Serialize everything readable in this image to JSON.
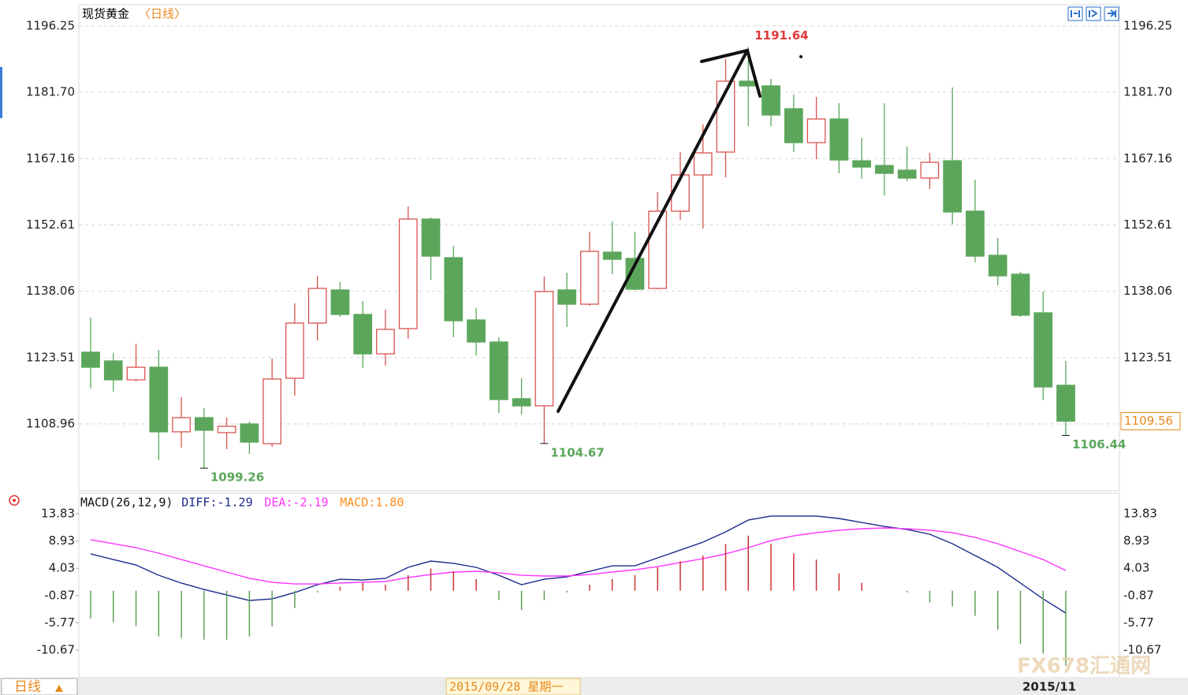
{
  "title": "现货黄金",
  "period": "〈日线〉",
  "chart_data": [
    {
      "type": "candlestick",
      "color_up": "#d9534f",
      "color_down": "#5ba65b",
      "grid": true,
      "ylim": [
        1094.44,
        1200.57
      ],
      "yticks": [
        1108.96,
        1123.51,
        1138.06,
        1152.61,
        1167.16,
        {
          "value": 1181.7,
          "label": "1181.70"
        },
        1196.25
      ],
      "open": [
        1124.69,
        1122.78,
        1118.64,
        1121.4,
        1107.23,
        1110.34,
        1107.05,
        1108.96,
        1104.63,
        1118.98,
        1131.08,
        1138.34,
        1132.98,
        1124.34,
        1129.87,
        1153.9,
        1145.43,
        1131.77,
        1126.93,
        1114.49,
        1112.93,
        1138.34,
        1135.23,
        1146.64,
        1145.26,
        1138.69,
        1155.63,
        1163.58,
        1168.59,
        1184.15,
        1183.11,
        1178.1,
        1170.67,
        1175.85,
        1166.69,
        1165.65,
        1164.62,
        1162.89,
        1166.69,
        1155.63,
        1145.95,
        1141.8,
        1133.33,
        1117.43
      ],
      "high": [
        1132.29,
        1124.51,
        1126.59,
        1125.2,
        1114.83,
        1112.41,
        1110.34,
        1109.47,
        1123.3,
        1135.4,
        1141.45,
        1140.07,
        1135.92,
        1134.02,
        1156.67,
        1154.25,
        1148.02,
        1134.37,
        1127.97,
        1118.98,
        1141.28,
        1142.15,
        1151.13,
        1153.38,
        1151.13,
        1159.78,
        1168.59,
        1174.64,
        1188.99,
        1191.64,
        1184.67,
        1181.21,
        1180.69,
        1179.31,
        1171.7,
        1179.31,
        1169.8,
        1168.42,
        1182.77,
        1162.54,
        1149.75,
        1142.32,
        1138.0,
        1122.78
      ],
      "low": [
        1116.73,
        1116.04,
        1118.29,
        1101.0,
        1103.77,
        1099.26,
        1103.42,
        1102.39,
        1103.94,
        1115.18,
        1127.28,
        1132.46,
        1121.23,
        1121.75,
        1127.62,
        1140.59,
        1127.97,
        1123.99,
        1111.38,
        1111.03,
        1104.67,
        1130.22,
        1134.88,
        1141.8,
        1138.34,
        1138.51,
        1153.73,
        1151.82,
        1163.06,
        1174.3,
        1174.3,
        1168.59,
        1167.04,
        1163.93,
        1162.72,
        1159.09,
        1162.2,
        1160.47,
        1152.69,
        1144.39,
        1139.38,
        1132.46,
        1114.14,
        1106.44
      ],
      "close": [
        1121.4,
        1118.64,
        1121.4,
        1107.23,
        1110.34,
        1107.57,
        1108.44,
        1104.98,
        1118.81,
        1131.08,
        1138.69,
        1132.98,
        1124.34,
        1129.7,
        1153.9,
        1145.77,
        1131.6,
        1126.93,
        1114.31,
        1112.93,
        1138.0,
        1135.23,
        1146.81,
        1145.08,
        1138.51,
        1155.63,
        1163.58,
        1168.42,
        1184.15,
        1183.11,
        1176.72,
        1170.67,
        1175.85,
        1166.86,
        1165.31,
        1163.93,
        1162.89,
        1166.35,
        1155.46,
        1145.77,
        1141.45,
        1132.81,
        1117.08,
        1109.56
      ]
    },
    {
      "type": "macd",
      "title": "MACD(26,12,9)",
      "ylim": [
        -15.63,
        17.23
      ],
      "yticks": [
        -10.67,
        -5.77,
        -0.87,
        4.03,
        8.93,
        13.83
      ],
      "series": [
        {
          "name": "DIFF:-1.29",
          "color": "#1c2a8c",
          "style": "line",
          "values": [
            6.61,
            5.61,
            4.62,
            2.78,
            1.37,
            0.23,
            -0.76,
            -1.75,
            -1.47,
            -0.33,
            1.08,
            2.07,
            1.93,
            2.22,
            4.2,
            5.33,
            4.91,
            4.2,
            2.78,
            1.08,
            2.07,
            2.5,
            3.49,
            4.48,
            4.48,
            5.9,
            7.31,
            8.73,
            10.57,
            12.7,
            13.41,
            13.41,
            13.41,
            12.98,
            12.27,
            11.56,
            11.0,
            10.15,
            8.45,
            6.32,
            4.2,
            1.37,
            -1.47,
            -4.02
          ]
        },
        {
          "name": "DEA:-2.19",
          "color": "#ff33ff",
          "style": "line",
          "values": [
            9.16,
            8.45,
            7.74,
            6.75,
            5.61,
            4.48,
            3.35,
            2.22,
            1.51,
            1.22,
            1.22,
            1.37,
            1.51,
            1.65,
            2.36,
            2.92,
            3.35,
            3.49,
            3.21,
            2.78,
            2.64,
            2.64,
            2.92,
            3.35,
            3.77,
            4.34,
            5.05,
            5.76,
            6.61,
            7.74,
            9.01,
            9.86,
            10.43,
            10.86,
            11.14,
            11.28,
            11.14,
            10.86,
            10.43,
            9.58,
            8.45,
            7.03,
            5.61,
            3.63
          ]
        },
        {
          "name": "MACD:1.80",
          "color": "#ff8c1a",
          "style": "bar",
          "color_up": "#cc3333",
          "color_down": "#5f9f55",
          "values": [
            -4.96,
            -5.67,
            -6.37,
            -8.2,
            -8.5,
            -8.8,
            -8.8,
            -8.2,
            -6.4,
            -3.1,
            -0.3,
            0.7,
            1.4,
            1.1,
            2.8,
            4.0,
            3.5,
            2.1,
            -1.7,
            -3.5,
            -1.7,
            -0.3,
            1.1,
            2.1,
            2.8,
            4.2,
            5.3,
            6.3,
            8.4,
            9.9,
            8.4,
            6.7,
            5.6,
            3.1,
            1.4,
            0,
            -0.3,
            -2.1,
            -2.8,
            -4.5,
            -7.0,
            -9.6,
            -11.3,
            -13.5
          ]
        }
      ]
    }
  ],
  "footer": {
    "period_tab": "日线",
    "cursor_date": "2015/09/28 星期一",
    "month_label": "2015/11"
  },
  "watermark": "FX678汇通网"
}
